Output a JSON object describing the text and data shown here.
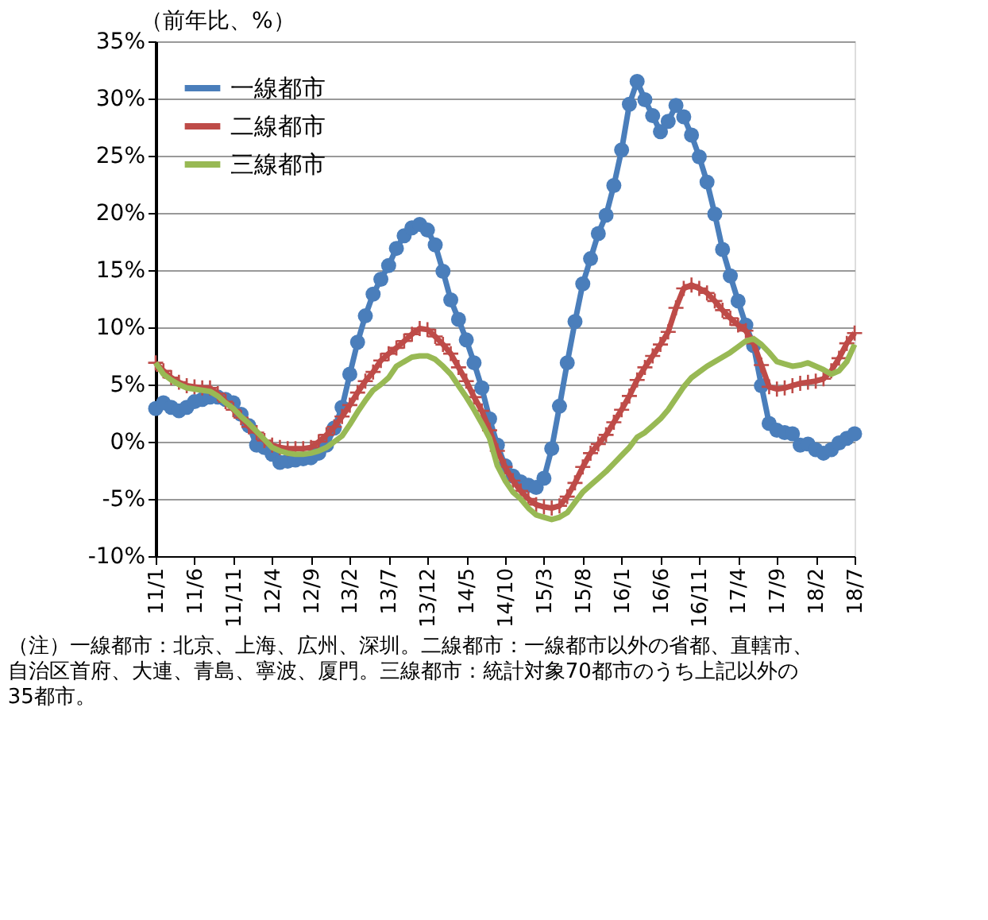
{
  "chart_data": {
    "type": "line",
    "ylabel": "（前年比、%）",
    "categories": [
      "11/1",
      null,
      null,
      null,
      null,
      "11/6",
      null,
      null,
      null,
      null,
      "11/11",
      null,
      null,
      null,
      null,
      "12/4",
      null,
      null,
      null,
      null,
      "12/9",
      null,
      null,
      null,
      null,
      "13/2",
      null,
      null,
      null,
      null,
      "13/7",
      null,
      null,
      null,
      null,
      "13/12",
      null,
      null,
      null,
      null,
      "14/5",
      null,
      null,
      null,
      null,
      "14/10",
      null,
      null,
      null,
      null,
      "15/3",
      null,
      null,
      null,
      null,
      "15/8",
      null,
      null,
      null,
      null,
      "16/1",
      null,
      null,
      null,
      null,
      "16/6",
      null,
      null,
      null,
      null,
      "16/11",
      null,
      null,
      null,
      null,
      "17/4",
      null,
      null,
      null,
      null,
      "17/9",
      null,
      null,
      null,
      null,
      "18/2",
      null,
      null,
      null,
      null,
      "18/7"
    ],
    "series": [
      {
        "name": "一線都市",
        "color": "#4a7ebb",
        "marker": "circle",
        "values": [
          2.9,
          3.4,
          3.0,
          2.7,
          3.0,
          3.5,
          3.7,
          3.9,
          3.9,
          3.7,
          3.4,
          2.4,
          1.4,
          -0.3,
          -0.5,
          -1.1,
          -1.8,
          -1.7,
          -1.6,
          -1.5,
          -1.4,
          -1.0,
          -0.3,
          1.2,
          3.0,
          5.9,
          8.7,
          11.0,
          12.9,
          14.2,
          15.4,
          16.9,
          18.0,
          18.7,
          19.0,
          18.5,
          17.2,
          14.9,
          12.4,
          10.7,
          8.9,
          6.9,
          4.7,
          2.0,
          -0.3,
          -2.1,
          -3.0,
          -3.5,
          -3.8,
          -4.0,
          -3.2,
          -0.6,
          3.1,
          6.9,
          10.5,
          13.8,
          16.0,
          18.2,
          19.8,
          22.4,
          25.5,
          29.5,
          31.5,
          29.9,
          28.5,
          27.1,
          28.0,
          29.4,
          28.4,
          26.8,
          24.9,
          22.7,
          19.9,
          16.8,
          14.5,
          12.3,
          10.2,
          8.4,
          4.9,
          1.6,
          1.0,
          0.8,
          0.7,
          -0.3,
          -0.2,
          -0.7,
          -1.0,
          -0.7,
          -0.1,
          0.3,
          0.7
        ]
      },
      {
        "name": "二線都市",
        "color": "#be4b48",
        "marker": "cross",
        "values": [
          6.9,
          6.2,
          5.6,
          5.2,
          4.9,
          4.8,
          4.7,
          4.7,
          4.2,
          3.5,
          2.8,
          2.1,
          1.3,
          0.8,
          0.1,
          -0.3,
          -0.5,
          -0.6,
          -0.6,
          -0.6,
          -0.5,
          0.0,
          0.6,
          1.3,
          2.2,
          3.2,
          4.3,
          5.3,
          6.1,
          7.1,
          7.7,
          8.2,
          8.8,
          9.4,
          9.9,
          9.8,
          9.2,
          8.5,
          7.7,
          6.5,
          5.3,
          3.9,
          2.7,
          1.0,
          -0.8,
          -2.2,
          -3.4,
          -4.3,
          -5.0,
          -5.5,
          -5.7,
          -5.8,
          -5.6,
          -4.8,
          -3.6,
          -2.2,
          -1.0,
          -0.2,
          0.6,
          1.7,
          2.8,
          4.0,
          5.4,
          6.5,
          7.5,
          8.5,
          9.6,
          11.7,
          13.4,
          13.7,
          13.4,
          13.0,
          12.3,
          11.5,
          10.8,
          10.2,
          9.7,
          8.6,
          6.7,
          4.8,
          4.6,
          4.7,
          4.9,
          5.1,
          5.2,
          5.3,
          5.5,
          6.2,
          7.3,
          8.6,
          9.5
        ]
      },
      {
        "name": "三線都市",
        "color": "#98b954",
        "marker": "none",
        "values": [
          6.9,
          5.9,
          5.4,
          5.0,
          4.7,
          4.6,
          4.5,
          4.4,
          4.0,
          3.4,
          2.9,
          2.2,
          1.6,
          0.9,
          0.2,
          -0.5,
          -0.8,
          -1.0,
          -1.1,
          -1.1,
          -1.0,
          -0.8,
          -0.5,
          0.0,
          0.5,
          1.5,
          2.6,
          3.6,
          4.5,
          5.0,
          5.6,
          6.6,
          7.0,
          7.4,
          7.5,
          7.5,
          7.2,
          6.6,
          5.9,
          4.9,
          3.9,
          2.8,
          1.6,
          0.3,
          -2.1,
          -3.4,
          -4.4,
          -5.0,
          -5.8,
          -6.4,
          -6.6,
          -6.8,
          -6.6,
          -6.2,
          -5.3,
          -4.4,
          -3.8,
          -3.2,
          -2.6,
          -1.9,
          -1.2,
          -0.5,
          0.4,
          0.8,
          1.4,
          2.0,
          2.8,
          3.8,
          4.8,
          5.6,
          6.1,
          6.6,
          7.0,
          7.4,
          7.8,
          8.3,
          8.8,
          9.0,
          8.5,
          7.8,
          7.0,
          6.8,
          6.6,
          6.7,
          6.9,
          6.6,
          6.3,
          5.9,
          6.2,
          7.0,
          8.5
        ]
      }
    ],
    "ylim": [
      -10,
      35
    ],
    "yticks": [
      {
        "value": -10,
        "label": "-10%"
      },
      {
        "value": -5,
        "label": "-5%"
      },
      {
        "value": 0,
        "label": "0%"
      },
      {
        "value": 5,
        "label": "5%"
      },
      {
        "value": 10,
        "label": "10%"
      },
      {
        "value": 15,
        "label": "15%"
      },
      {
        "value": 20,
        "label": "20%"
      },
      {
        "value": 25,
        "label": "25%"
      },
      {
        "value": 30,
        "label": "30%"
      },
      {
        "value": 35,
        "label": "35%"
      }
    ],
    "grid": "y",
    "legend": "top left",
    "annotations": [
      "（注）一線都市：北京、上海、広州、深圳。二線都市：一線都市以外の省都、直轄市、自治区首府、大連、青島、寧波、厦門。三線都市：統計対象70都市のうち上記以外の35都市。"
    ]
  }
}
